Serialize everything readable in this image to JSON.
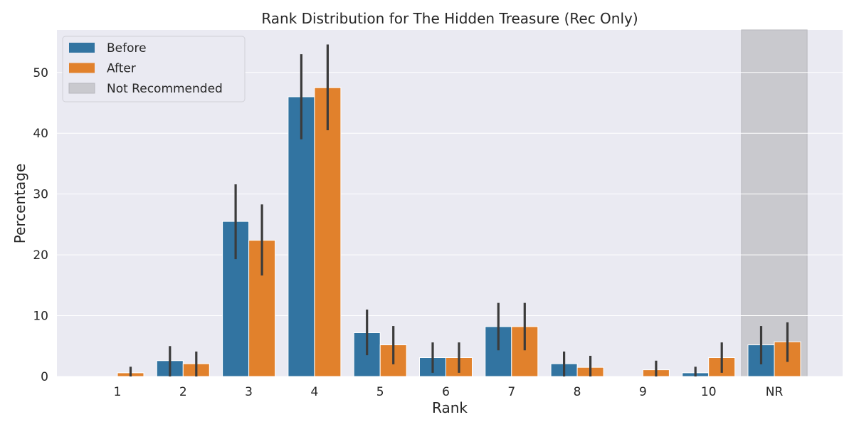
{
  "chart_data": {
    "type": "bar",
    "title": "Rank Distribution for The Hidden Treasure (Rec Only)",
    "xlabel": "Rank",
    "ylabel": "Percentage",
    "categories": [
      "1",
      "2",
      "3",
      "4",
      "5",
      "6",
      "7",
      "8",
      "9",
      "10",
      "NR"
    ],
    "ylim": [
      0,
      57
    ],
    "yticks": [
      0,
      10,
      20,
      30,
      40,
      50
    ],
    "grid": true,
    "legend_position": "top-left",
    "highlight": {
      "label": "Not Recommended",
      "category": "NR",
      "color": "#c9c9ce"
    },
    "series": [
      {
        "name": "Before",
        "color": "#3274a1",
        "values": [
          0,
          2.6,
          25.5,
          46.0,
          7.2,
          3.1,
          8.2,
          2.1,
          0,
          0.6,
          5.2
        ],
        "err_low": [
          0,
          0,
          19.3,
          39.0,
          3.5,
          0.6,
          4.3,
          0,
          0,
          0,
          2.0
        ],
        "err_high": [
          0,
          5.0,
          31.6,
          53.0,
          11.0,
          5.6,
          12.1,
          4.1,
          0,
          1.6,
          8.3
        ]
      },
      {
        "name": "After",
        "color": "#e1812c",
        "values": [
          0.6,
          2.1,
          22.4,
          47.5,
          5.2,
          3.1,
          8.2,
          1.5,
          1.1,
          3.1,
          5.7
        ],
        "err_low": [
          0,
          0,
          16.6,
          40.5,
          2.0,
          0.6,
          4.3,
          0,
          0,
          0.6,
          2.4
        ],
        "err_high": [
          1.6,
          4.1,
          28.3,
          54.6,
          8.3,
          5.6,
          12.1,
          3.4,
          2.6,
          5.6,
          8.9
        ]
      }
    ]
  }
}
